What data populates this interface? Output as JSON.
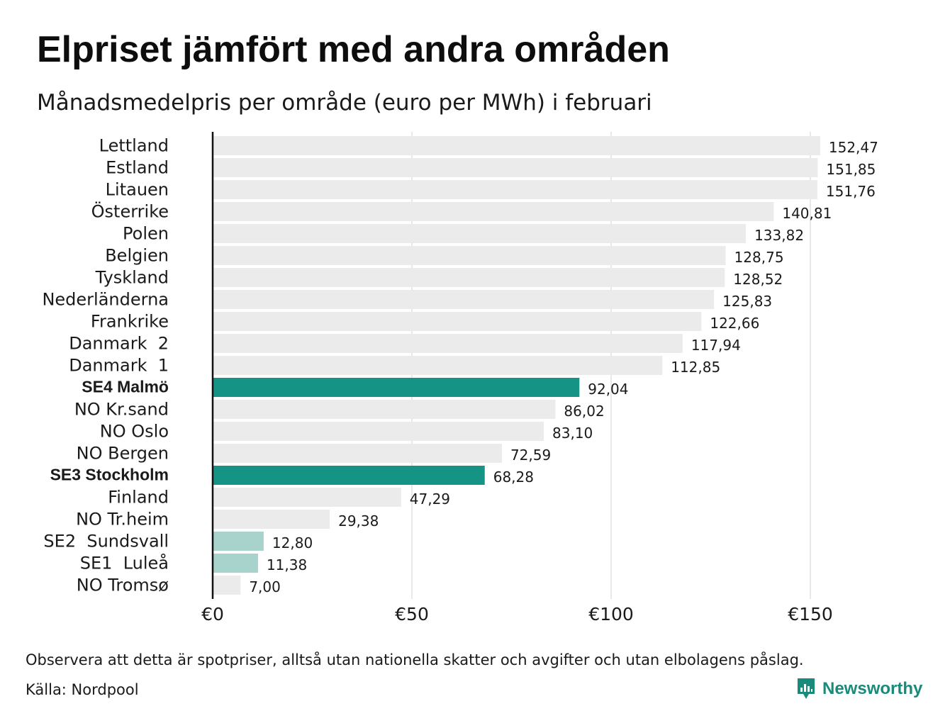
{
  "title": "Elpriset jämfört med andra områden",
  "subtitle": "Månadsmedelpris per område (euro per MWh) i februari",
  "note": "Observera att detta är spotpriser, alltså utan nationella skatter och avgifter och utan elbolagens påslag.",
  "source": "Källa: Nordpool",
  "brand": {
    "name": "Newsworthy",
    "icon": "newsworthy-logo-icon",
    "color": "#1a8a7a"
  },
  "colors": {
    "default": "#ebebeb",
    "highlight": "#159384",
    "light_highlight": "#a8d3cd",
    "gridline": "#d0d0d0",
    "axis": "#111111"
  },
  "chart_data": {
    "type": "bar",
    "orientation": "horizontal",
    "title": "Elpriset jämfört med andra områden",
    "subtitle": "Månadsmedelpris per område (euro per MWh) i februari",
    "xlim": [
      0,
      170
    ],
    "x_ticks": [
      0,
      50,
      100,
      150
    ],
    "x_tick_labels": [
      "€0",
      "€50",
      "€100",
      "€150"
    ],
    "grid": "vertical",
    "categories": [
      "Lettland",
      "Estland",
      "Litauen",
      "Österrike",
      "Polen",
      "Belgien",
      "Tyskland",
      "Nederländerna",
      "Frankrike",
      "Danmark  2",
      "Danmark  1",
      "SE4 Malmö",
      "NO Kr.sand",
      "NO Oslo",
      "NO Bergen",
      "SE3 Stockholm",
      "Finland",
      "NO Tr.heim",
      "SE2  Sundsvall",
      "SE1  Luleå",
      "NO Tromsø"
    ],
    "values": [
      152.47,
      151.85,
      151.76,
      140.81,
      133.82,
      128.75,
      128.52,
      125.83,
      122.66,
      117.94,
      112.85,
      92.04,
      86.02,
      83.1,
      72.59,
      68.28,
      47.29,
      29.38,
      12.8,
      11.38,
      7.0
    ],
    "value_labels": [
      "152,47",
      "151,85",
      "151,76",
      "140,81",
      "133,82",
      "128,75",
      "128,52",
      "125,83",
      "122,66",
      "117,94",
      "112,85",
      "92,04",
      "86,02",
      "83,10",
      "72,59",
      "68,28",
      "47,29",
      "29,38",
      "12,80",
      "11,38",
      "7,00"
    ],
    "highlight": [
      "none",
      "none",
      "none",
      "none",
      "none",
      "none",
      "none",
      "none",
      "none",
      "none",
      "none",
      "strong",
      "none",
      "none",
      "none",
      "strong",
      "none",
      "none",
      "light",
      "light",
      "none"
    ]
  }
}
